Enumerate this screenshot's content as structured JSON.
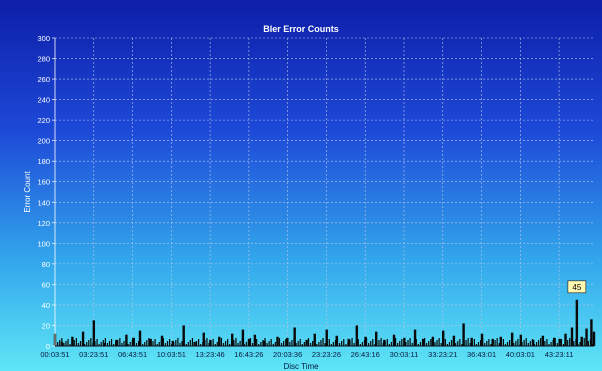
{
  "chart_data": {
    "type": "bar",
    "title": "Bler Error Counts",
    "xlabel": "Disc Time",
    "ylabel": "Error Count",
    "ylim": [
      0,
      300
    ],
    "yticks": [
      0,
      20,
      40,
      60,
      80,
      100,
      120,
      140,
      160,
      180,
      200,
      220,
      240,
      260,
      280,
      300
    ],
    "xtick_labels": [
      "00:03:51",
      "03:23:51",
      "06:43:51",
      "10:03:51",
      "13:23:46",
      "16:43:26",
      "20:03:36",
      "23:23:26",
      "26:43:16",
      "30:03:11",
      "33:23:21",
      "36:43:01",
      "40:03:01",
      "43:23:11"
    ],
    "x_range_seconds": [
      231,
      166800
    ],
    "grid": true,
    "series": [
      {
        "x_seconds": [
          231,
          2400,
          5600,
          8900,
          12231,
          15600,
          19200,
          22300,
          24431,
          26500,
          29800,
          33300,
          36631,
          40000,
          43400,
          46200,
          48226,
          51000,
          55000,
          58300,
          60206,
          62000,
          65000,
          69000,
          72036,
          74300,
          78000,
          80500,
          84206,
          87300,
          91000,
          93500,
          96196,
          99500,
          102000,
          105000,
          108191,
          111500,
          114000,
          117000,
          120201,
          123500,
          126500,
          129000,
          132181,
          135500,
          138000,
          141500,
          144181,
          148000,
          151000,
          154500,
          156191,
          158000,
          160000,
          161500,
          163000,
          164500,
          166000,
          166800
        ],
        "values": [
          12,
          4,
          9,
          14,
          25,
          3,
          6,
          11,
          8,
          15,
          7,
          10,
          5,
          20,
          4,
          13,
          6,
          9,
          12,
          16,
          7,
          11,
          5,
          9,
          8,
          18,
          6,
          12,
          16,
          10,
          7,
          20,
          9,
          14,
          6,
          11,
          8,
          16,
          7,
          9,
          15,
          10,
          22,
          8,
          12,
          7,
          9,
          13,
          11,
          6,
          10,
          8,
          7,
          12,
          18,
          45,
          9,
          17,
          26,
          14
        ]
      }
    ],
    "annotation": {
      "text": "45",
      "x_seconds": 161500,
      "y": 45
    }
  }
}
